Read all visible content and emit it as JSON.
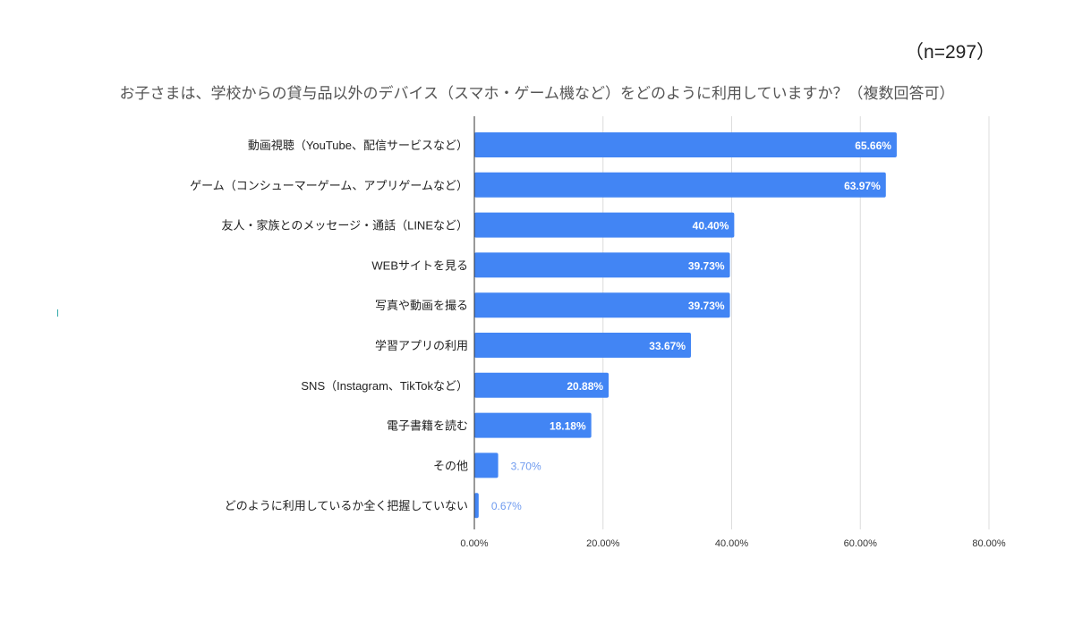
{
  "chart_data": {
    "type": "bar",
    "orientation": "horizontal",
    "title": "お子さまは、学校からの貸与品以外のデバイス（スマホ・ゲーム機など）をどのように利用していますか？（複数回答可）",
    "note": "（n=297）",
    "categories": [
      "動画視聴（YouTube、配信サービスなど）",
      "ゲーム（コンシューマーゲーム、アプリゲームなど）",
      "友人・家族とのメッセージ・通話（LINEなど）",
      "WEBサイトを見る",
      "写真や動画を撮る",
      "学習アプリの利用",
      "SNS（Instagram、TikTokなど）",
      "電子書籍を読む",
      "その他",
      "どのように利用しているか全く把握していない"
    ],
    "values": [
      65.66,
      63.97,
      40.4,
      39.73,
      39.73,
      33.67,
      20.88,
      18.18,
      3.7,
      0.67
    ],
    "data_labels": [
      "65.66%",
      "63.97%",
      "40.40%",
      "39.73%",
      "39.73%",
      "33.67%",
      "20.88%",
      "18.18%",
      "3.70%",
      "0.67%"
    ],
    "xlim": [
      0,
      80
    ],
    "x_ticks": [
      "0.00%",
      "20.00%",
      "40.00%",
      "60.00%",
      "80.00%"
    ],
    "grid": true,
    "bar_color": "#4285f4",
    "outside_label_color": "#6f9bef"
  }
}
